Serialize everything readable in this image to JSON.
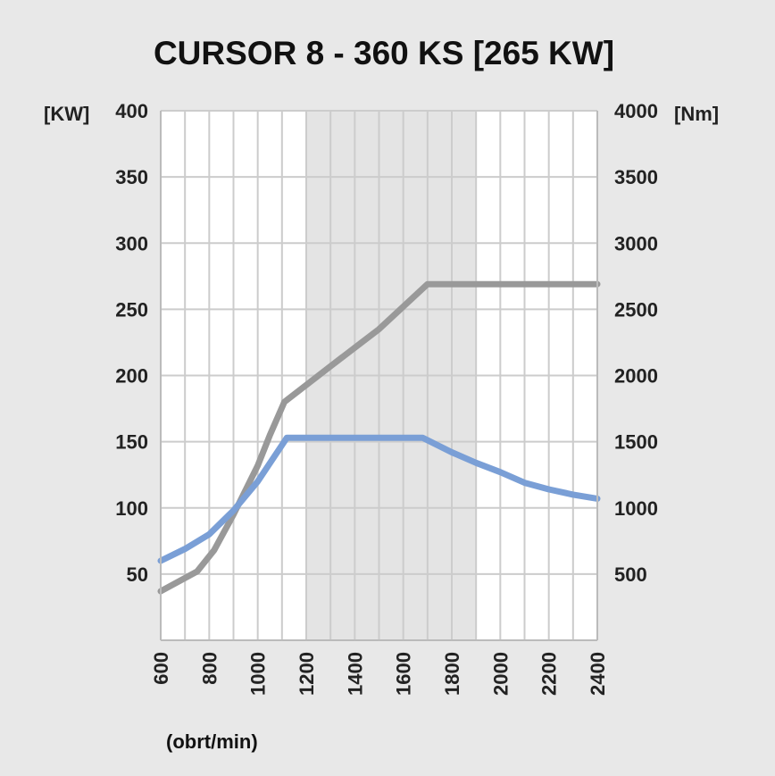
{
  "chart_data": {
    "type": "line",
    "title": "CURSOR 8 - 360 KS [265 KW]",
    "xlabel": "(obrt/min)",
    "y_left_unit": "[KW]",
    "y_right_unit": "[Nm]",
    "xlim": [
      600,
      2400
    ],
    "ylim_left": [
      0,
      400
    ],
    "ylim_right": [
      0,
      4000
    ],
    "x_ticks": [
      "600",
      "800",
      "1000",
      "1200",
      "1400",
      "1600",
      "1800",
      "2000",
      "2200",
      "2400"
    ],
    "y_left_ticks": [
      "50",
      "100",
      "150",
      "200",
      "250",
      "300",
      "350",
      "400"
    ],
    "y_right_ticks": [
      "500",
      "1000",
      "1500",
      "2000",
      "2500",
      "3000",
      "3500",
      "4000"
    ],
    "shaded_band_x": [
      1200,
      1900
    ],
    "grid": true,
    "series": [
      {
        "axis": "left",
        "color": "#999999",
        "x": [
          600,
          750,
          820,
          900,
          1000,
          1050,
          1110,
          1300,
          1500,
          1700,
          1800,
          2000,
          2200,
          2400
        ],
        "values": [
          37,
          52,
          68,
          95,
          132,
          155,
          180,
          207,
          235,
          269,
          269,
          269,
          269,
          269
        ]
      },
      {
        "axis": "right",
        "color": "#7a9fd6",
        "x": [
          600,
          700,
          800,
          900,
          1000,
          1120,
          1200,
          1400,
          1600,
          1680,
          1800,
          1900,
          2000,
          2100,
          2200,
          2300,
          2400
        ],
        "values": [
          600,
          690,
          800,
          980,
          1200,
          1530,
          1530,
          1530,
          1530,
          1530,
          1420,
          1340,
          1270,
          1190,
          1140,
          1100,
          1070
        ]
      }
    ]
  }
}
